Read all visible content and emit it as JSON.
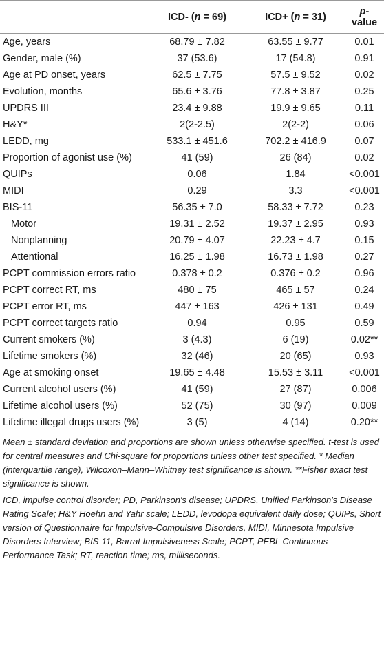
{
  "table": {
    "header": [
      [
        "ICD- (",
        "n",
        " = 69)"
      ],
      [
        "ICD+ (",
        "n",
        " = 31)"
      ],
      [
        "p",
        "-value"
      ]
    ],
    "rows": [
      [
        "Age, years",
        "68.79 ± 7.82",
        "63.55 ± 9.77",
        "0.01"
      ],
      [
        "Gender, male (%)",
        "37 (53.6)",
        "17 (54.8)",
        "0.91"
      ],
      [
        "Age at PD onset, years",
        "62.5 ± 7.75",
        "57.5 ± 9.52",
        "0.02"
      ],
      [
        "Evolution, months",
        "65.6 ± 3.76",
        "77.8 ± 3.87",
        "0.25"
      ],
      [
        "UPDRS III",
        "23.4 ± 9.88",
        "19.9 ± 9.65",
        "0.11"
      ],
      [
        "H&Y*",
        "2(2-2.5)",
        "2(2-2)",
        "0.06"
      ],
      [
        "LEDD, mg",
        "533.1 ± 451.6",
        "702.2 ± 416.9",
        "0.07"
      ],
      [
        "Proportion of agonist use (%)",
        "41 (59)",
        "26 (84)",
        "0.02"
      ],
      [
        "QUIPs",
        "0.06",
        "1.84",
        "<0.001"
      ],
      [
        "MIDI",
        "0.29",
        "3.3",
        "<0.001"
      ],
      [
        "BIS-11",
        "56.35 ± 7.0",
        "58.33 ± 7.72",
        "0.23"
      ],
      [
        "Motor",
        "19.31 ± 2.52",
        "19.37 ± 2.95",
        "0.93"
      ],
      [
        "Nonplanning",
        "20.79 ± 4.07",
        "22.23 ± 4.7",
        "0.15"
      ],
      [
        "Attentional",
        "16.25 ± 1.98",
        "16.73 ± 1.98",
        "0.27"
      ],
      [
        "PCPT commission errors ratio",
        "0.378 ± 0.2",
        "0.376 ± 0.2",
        "0.96"
      ],
      [
        "PCPT correct RT, ms",
        "480 ± 75",
        "465 ± 57",
        "0.24"
      ],
      [
        "PCPT error RT, ms",
        "447 ± 163",
        "426 ± 131",
        "0.49"
      ],
      [
        "PCPT correct targets ratio",
        "0.94",
        "0.95",
        "0.59"
      ],
      [
        "Current smokers (%)",
        "3 (4.3)",
        "6 (19)",
        "0.02**"
      ],
      [
        "Lifetime smokers (%)",
        "32 (46)",
        "20 (65)",
        "0.93"
      ],
      [
        "Age at smoking onset",
        "19.65 ± 4.48",
        "15.53 ± 3.11",
        "<0.001"
      ],
      [
        "Current alcohol users (%)",
        "41 (59)",
        "27 (87)",
        "0.006"
      ],
      [
        "Lifetime alcohol users (%)",
        "52 (75)",
        "30 (97)",
        "0.009"
      ],
      [
        "Lifetime illegal drugs users (%)",
        "3 (5)",
        "4 (14)",
        "0.20**"
      ]
    ]
  },
  "footnotes": [
    "Mean ± standard deviation and proportions are shown unless otherwise specified. t-test is used for central measures and Chi-square for proportions unless other test specified. * Median (interquartile range), Wilcoxon–Mann–Whitney test significance is shown. **Fisher exact test significance is shown.",
    "ICD, impulse control disorder; PD, Parkinson's disease; UPDRS, Unified Parkinson's Disease Rating Scale; H&Y Hoehn and Yahr scale; LEDD, levodopa equivalent daily dose; QUIPs, Short version of Questionnaire for Impulsive-Compulsive Disorders, MIDI, Minnesota Impulsive Disorders Interview; BIS-11, Barrat Impulsiveness Scale; PCPT, PEBL Continuous Performance Task; RT, reaction time; ms, milliseconds."
  ]
}
